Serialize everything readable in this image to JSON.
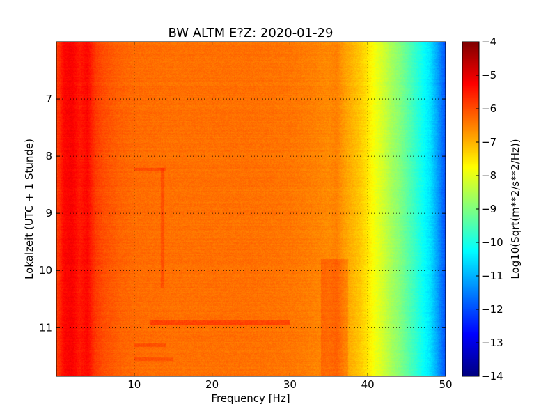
{
  "chart_data": {
    "type": "heatmap",
    "title": "BW ALTM E?Z: 2020-01-29",
    "xlabel": "Frequency [Hz]",
    "ylabel": "Lokalzeit (UTC + 1 Stunde)",
    "xlim": [
      0,
      50
    ],
    "ylim": [
      6,
      11.85
    ],
    "y_inverted": true,
    "x_ticks": [
      10,
      20,
      30,
      40,
      50
    ],
    "y_ticks": [
      7,
      8,
      9,
      10,
      11
    ],
    "grid": true,
    "colormap": "jet",
    "colorbar": {
      "label": "Log10(Sqrt(m**2/s**2/Hz))",
      "range": [
        -14,
        -4
      ],
      "ticks": [
        -4,
        -5,
        -6,
        -7,
        -8,
        -9,
        -10,
        -11,
        -12,
        -13,
        -14
      ]
    },
    "spectrum_profile": {
      "frequency_hz": [
        0,
        1,
        2,
        3,
        4,
        5,
        6,
        8,
        10,
        15,
        20,
        25,
        30,
        33,
        35,
        36,
        37,
        38,
        39,
        40,
        41,
        42,
        43,
        44,
        45,
        46,
        47,
        48,
        49,
        50
      ],
      "level": [
        -5.9,
        -5.3,
        -5.2,
        -5.5,
        -5.3,
        -5.8,
        -6.0,
        -6.2,
        -6.3,
        -6.35,
        -6.35,
        -6.35,
        -6.4,
        -6.5,
        -6.6,
        -6.5,
        -6.8,
        -7.0,
        -7.2,
        -7.5,
        -7.9,
        -8.2,
        -8.6,
        -8.9,
        -9.3,
        -9.7,
        -10.1,
        -10.5,
        -11.2,
        -12.0
      ]
    },
    "features": [
      {
        "name": "line 10.8-11.0h",
        "f_start": 12,
        "f_end": 30,
        "t_start": 10.88,
        "t_end": 10.96,
        "delta": 0.45
      },
      {
        "name": "line 8.2h",
        "f_start": 10,
        "f_end": 14,
        "t_start": 8.2,
        "t_end": 8.26,
        "delta": 0.35
      },
      {
        "name": "vertical 13.5Hz",
        "f_start": 13.4,
        "f_end": 13.9,
        "t_start": 8.2,
        "t_end": 10.3,
        "delta": 0.3
      },
      {
        "name": "band 35-37Hz",
        "f_start": 34,
        "f_end": 37.5,
        "t_start": 9.8,
        "t_end": 11.85,
        "delta": 0.3
      },
      {
        "name": "line 11.3h",
        "f_start": 10,
        "f_end": 14,
        "t_start": 11.28,
        "t_end": 11.34,
        "delta": 0.3
      },
      {
        "name": "line 11.55h",
        "f_start": 10,
        "f_end": 15,
        "t_start": 11.52,
        "t_end": 11.58,
        "delta": 0.3
      }
    ]
  }
}
